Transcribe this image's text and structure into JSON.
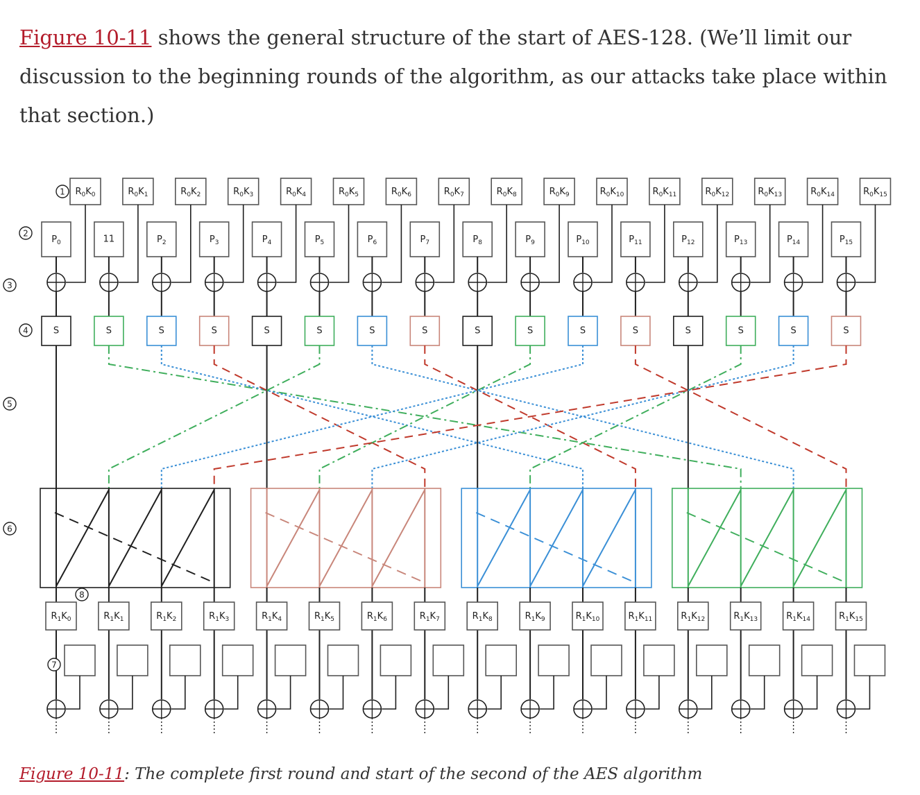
{
  "paragraph": {
    "link_text": "Figure 10-11",
    "text": " shows the general structure of the start of AES-128. (We’ll limit our discussion to the beginning rounds of the algorithm, as our attacks take place within that section.)"
  },
  "caption": {
    "link_text": "Figure 10-11",
    "text": ": The complete first round and start of the second of the AES algorithm"
  },
  "diagram": {
    "round0_keys": [
      "R0K0",
      "R0K1",
      "R0K2",
      "R0K3",
      "R0K4",
      "R0K5",
      "R0K6",
      "R0K7",
      "R0K8",
      "R0K9",
      "R0K10",
      "R0K11",
      "R0K12",
      "R0K13",
      "R0K14",
      "R0K15"
    ],
    "plaintext": [
      "P0",
      "11",
      "P2",
      "P3",
      "P4",
      "P5",
      "P6",
      "P7",
      "P8",
      "P9",
      "P10",
      "P11",
      "P12",
      "P13",
      "P14",
      "P15"
    ],
    "sbox_label": "S",
    "round1_keys": [
      "R1K0",
      "R1K1",
      "R1K2",
      "R1K3",
      "R1K4",
      "R1K5",
      "R1K6",
      "R1K7",
      "R1K8",
      "R1K9",
      "R1K10",
      "R1K11",
      "R1K12",
      "R1K13",
      "R1K14",
      "R1K15"
    ],
    "step_markers": [
      "1",
      "2",
      "3",
      "4",
      "5",
      "6",
      "7",
      "8"
    ],
    "colors": {
      "black": "#1f1f1f",
      "red": "#c0392b",
      "salmon": "#c8867a",
      "blue": "#3a8fd6",
      "green": "#3fae5c",
      "gray": "#555555"
    }
  }
}
